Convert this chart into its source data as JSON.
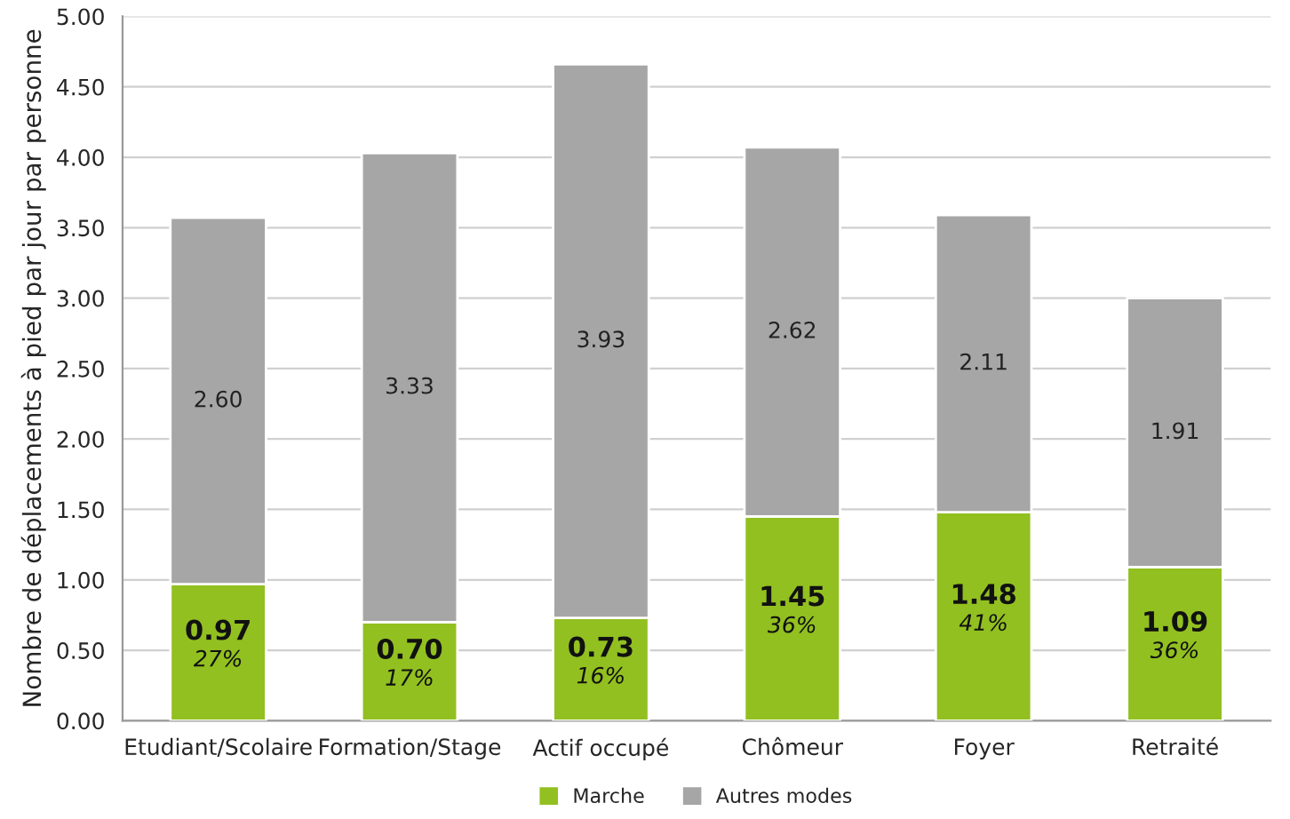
{
  "chart_data": {
    "type": "bar",
    "stacked": true,
    "ylabel": "Nombre de déplacements à pied par jour par personne",
    "categories": [
      "Etudiant/Scolaire",
      "Formation/Stage",
      "Actif occupé",
      "Chômeur",
      "Foyer",
      "Retraité"
    ],
    "series": [
      {
        "name": "Marche",
        "color": "#92c020",
        "values": [
          0.97,
          0.7,
          0.73,
          1.45,
          1.48,
          1.09
        ],
        "value_labels": [
          "0.97\n27%",
          "0.70\n17%",
          "0.73\n16%",
          "1.45\n36%",
          "1.48\n41%",
          "1.09\n36%"
        ]
      },
      {
        "name": "Autres modes",
        "color": "#a6a6a6",
        "values": [
          2.6,
          3.33,
          3.93,
          2.62,
          2.11,
          1.91
        ],
        "value_labels": [
          "2.60",
          "3.33",
          "3.93",
          "2.62",
          "2.11",
          "1.91"
        ]
      }
    ],
    "ylim": [
      0,
      5
    ],
    "yticks": [
      {
        "value": 0,
        "label": "0.00"
      },
      {
        "value": 0.5,
        "label": "0.50"
      },
      {
        "value": 1,
        "label": "1.00"
      },
      {
        "value": 1.5,
        "label": "1.50"
      },
      {
        "value": 2,
        "label": "2.00"
      },
      {
        "value": 2.5,
        "label": "2.50"
      },
      {
        "value": 3,
        "label": "3.00"
      },
      {
        "value": 3.5,
        "label": "3.50"
      },
      {
        "value": 4,
        "label": "4.00"
      },
      {
        "value": 4.5,
        "label": "4.50"
      },
      {
        "value": 5,
        "label": "5.00"
      }
    ],
    "grid": "y",
    "legend": "bottom"
  }
}
